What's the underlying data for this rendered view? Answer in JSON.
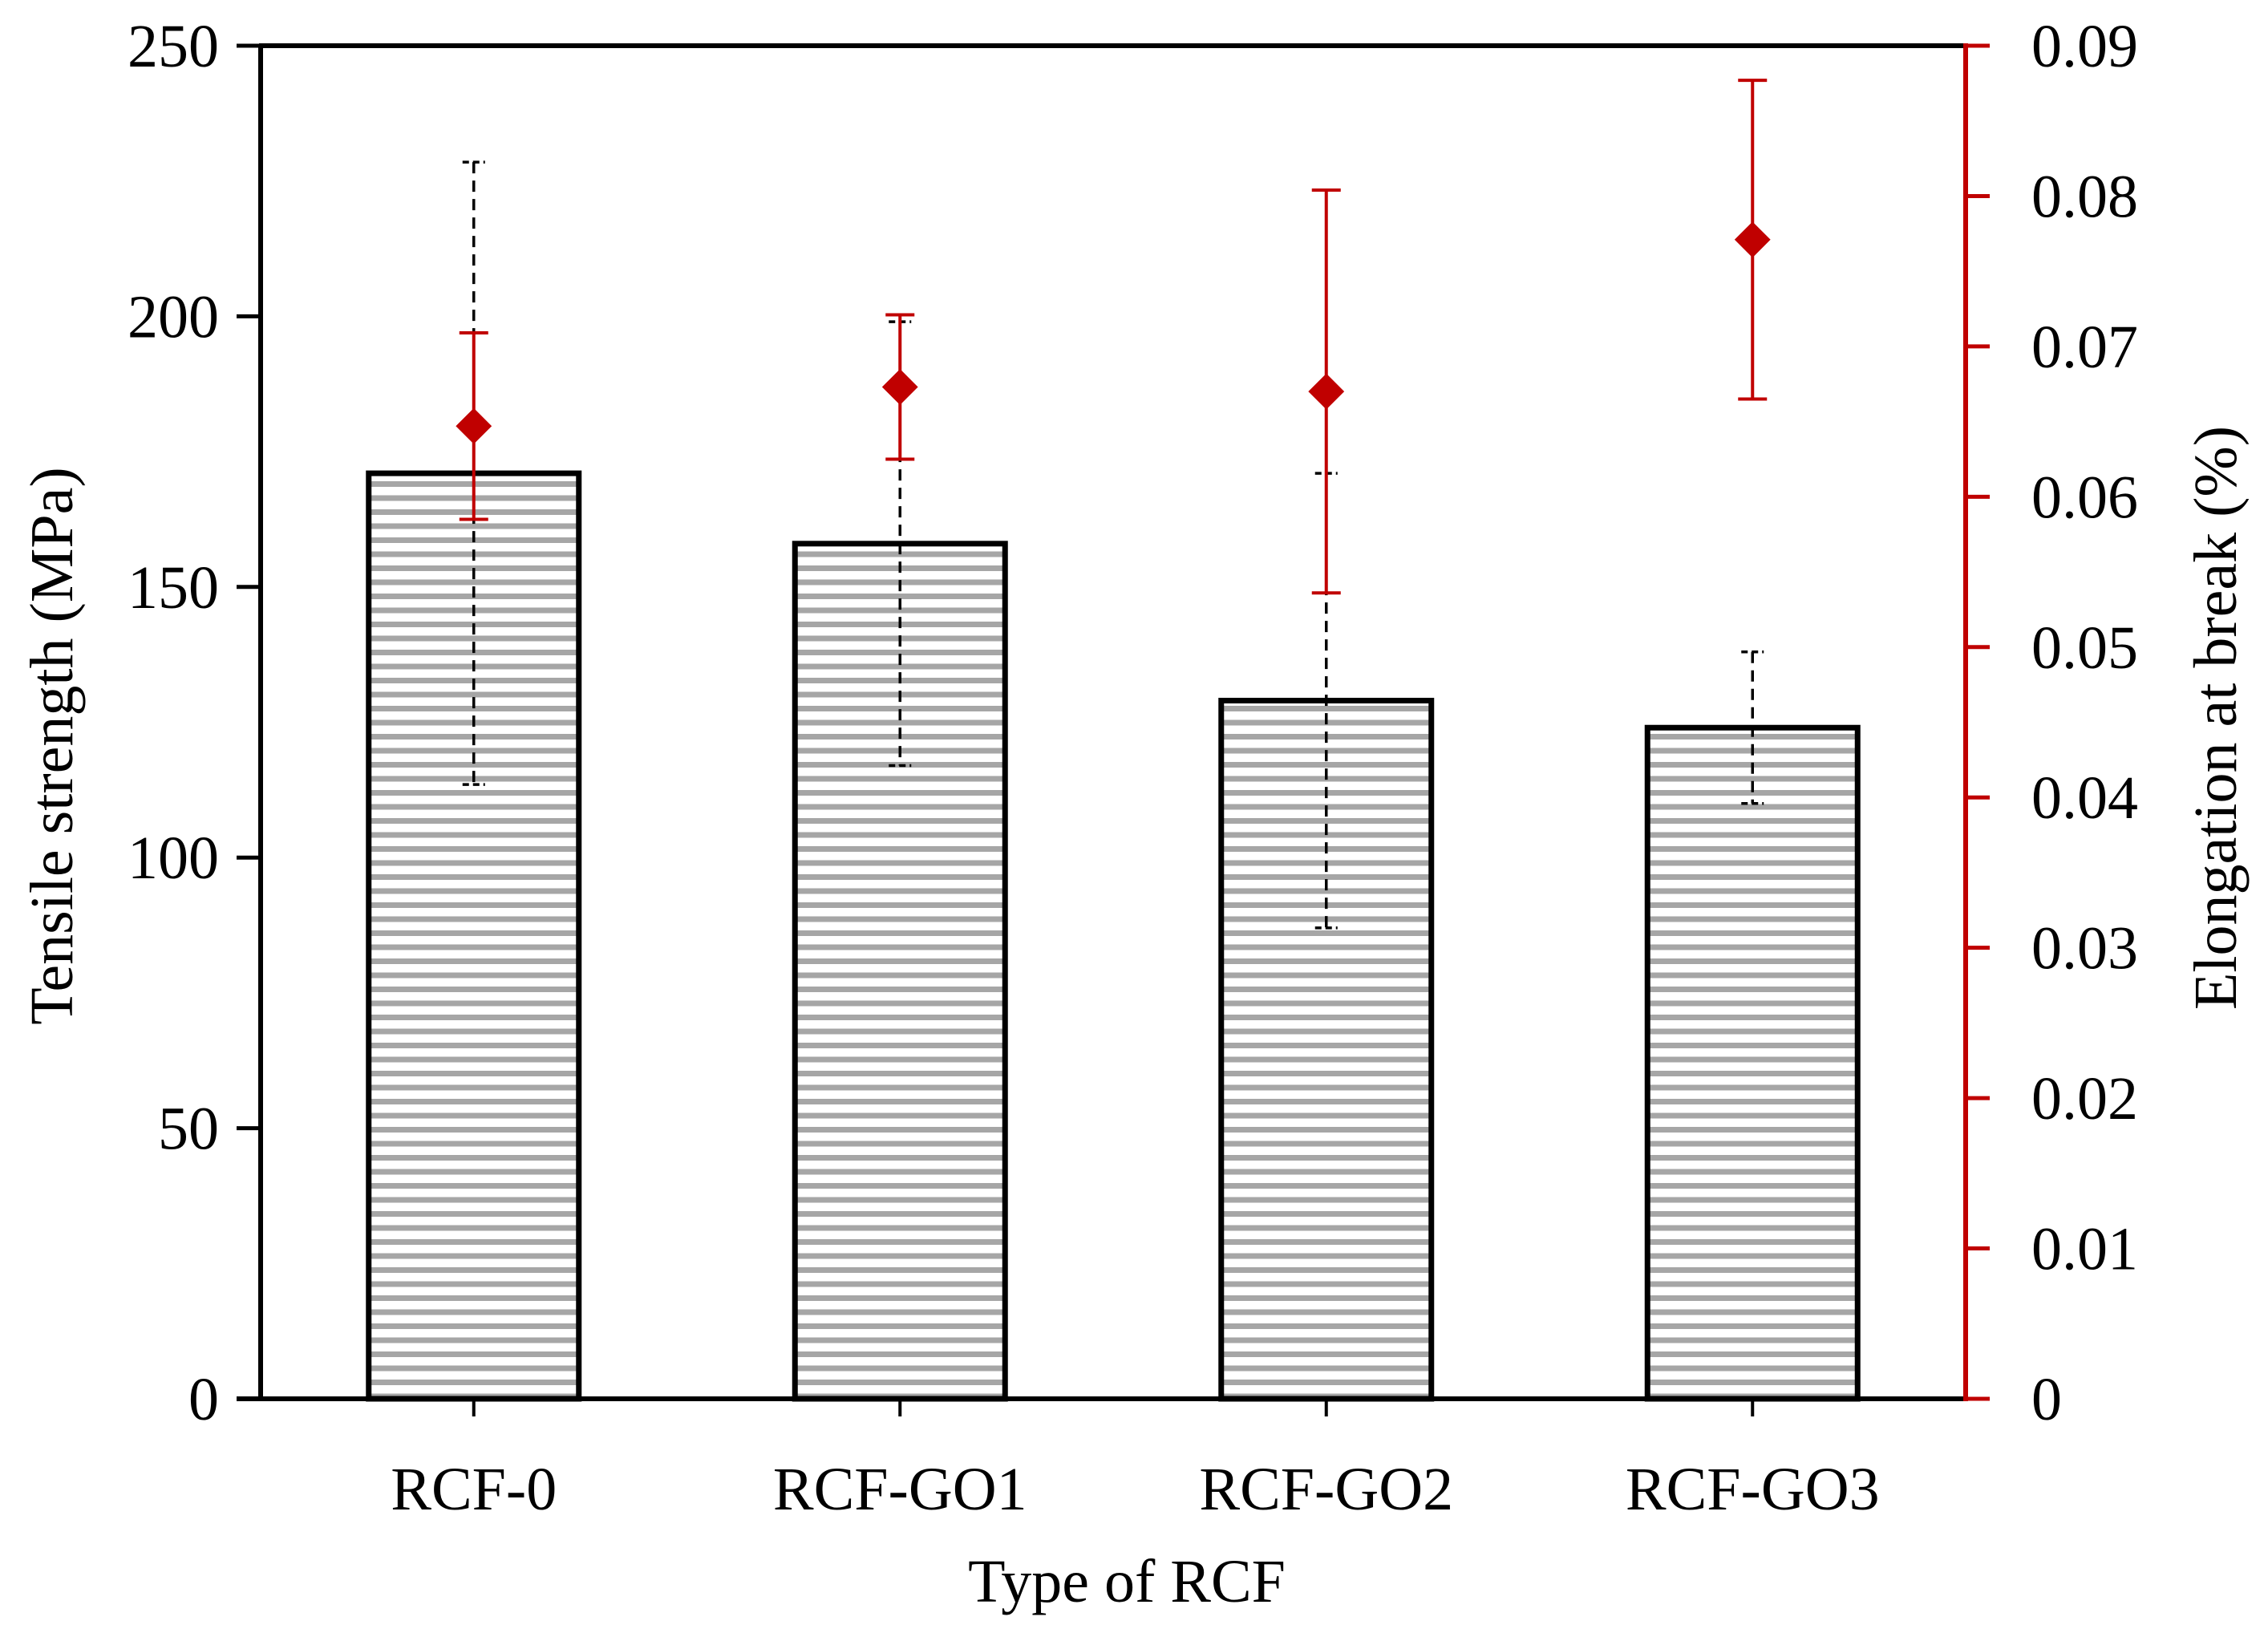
{
  "chart_data": {
    "type": "bar",
    "title": "",
    "xlabel": "Type of RCF",
    "ylabel": "Tensile strength (MPa)",
    "y2label": "Elongation at break (%)",
    "categories": [
      "RCF-0",
      "RCF-GO1",
      "RCF-GO2",
      "RCF-GO3"
    ],
    "ylim": [
      0,
      250
    ],
    "yticks": [
      0,
      50,
      100,
      150,
      200,
      250
    ],
    "y2lim": [
      0,
      0.09
    ],
    "y2ticks": [
      0,
      0.01,
      0.02,
      0.03,
      0.04,
      0.05,
      0.06,
      0.07,
      0.08,
      0.09
    ],
    "y2tick_labels": [
      "0",
      "0.01",
      "0.02",
      "0.03",
      "0.04",
      "0.05",
      "0.06",
      "0.07",
      "0.08",
      "0.09"
    ],
    "grid": false,
    "legend": "none",
    "series": [
      {
        "name": "Tensile strength",
        "type": "bar",
        "axis": "left",
        "values": [
          171,
          158,
          129,
          124
        ],
        "errors": [
          57.5,
          41,
          42,
          14
        ],
        "color": "#000000",
        "fill": "horizontal-stripes-grey"
      },
      {
        "name": "Elongation at break",
        "type": "scatter",
        "axis": "right",
        "marker": "diamond",
        "values": [
          0.0647,
          0.0673,
          0.067,
          0.0771
        ],
        "errors": [
          0.0062,
          0.0048,
          0.0134,
          0.0106
        ],
        "color": "#c00000"
      }
    ]
  }
}
